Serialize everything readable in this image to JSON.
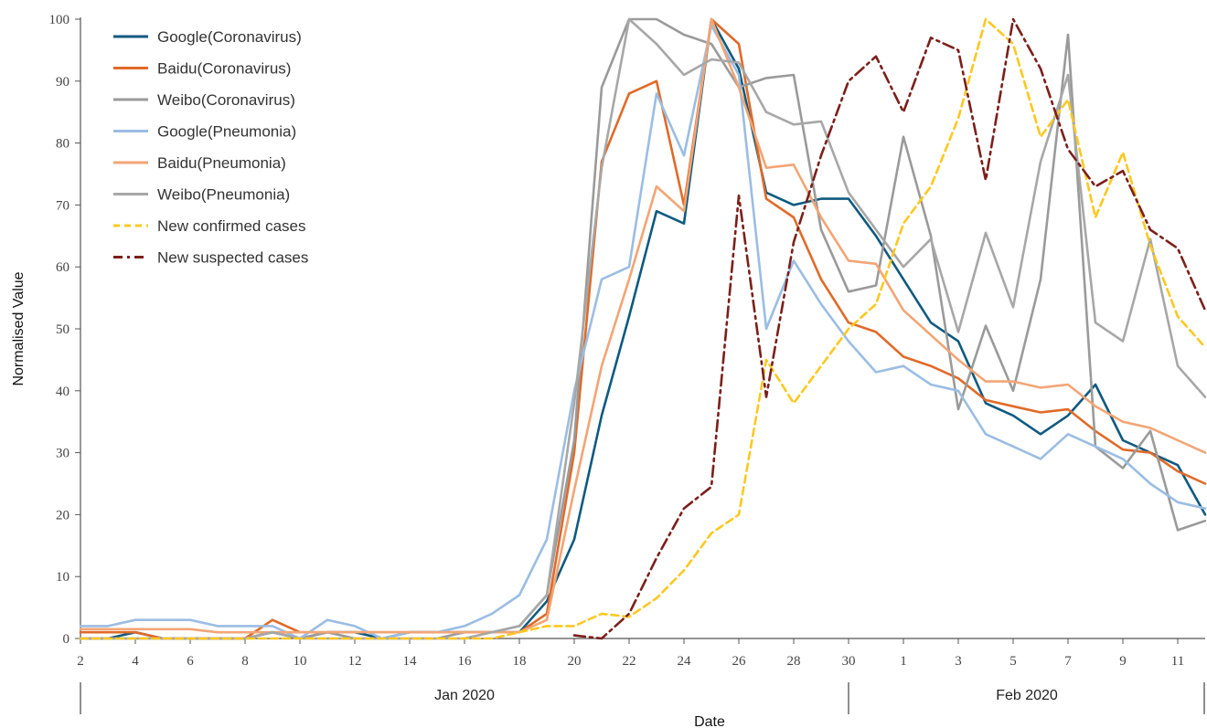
{
  "chart_data": {
    "type": "line",
    "xlabel": "Date",
    "ylabel": "Normalised Value",
    "ylim": [
      0,
      100
    ],
    "yticks": [
      0,
      10,
      20,
      30,
      40,
      50,
      60,
      70,
      80,
      90,
      100
    ],
    "xticks": [
      {
        "day": 2,
        "label": "2"
      },
      {
        "day": 4,
        "label": "4"
      },
      {
        "day": 6,
        "label": "6"
      },
      {
        "day": 8,
        "label": "8"
      },
      {
        "day": 10,
        "label": "10"
      },
      {
        "day": 12,
        "label": "12"
      },
      {
        "day": 14,
        "label": "14"
      },
      {
        "day": 16,
        "label": "16"
      },
      {
        "day": 18,
        "label": "18"
      },
      {
        "day": 20,
        "label": "20"
      },
      {
        "day": 22,
        "label": "22"
      },
      {
        "day": 24,
        "label": "24"
      },
      {
        "day": 26,
        "label": "26"
      },
      {
        "day": 28,
        "label": "28"
      },
      {
        "day": 30,
        "label": "30"
      },
      {
        "day": 32,
        "label": "1"
      },
      {
        "day": 34,
        "label": "3"
      },
      {
        "day": 36,
        "label": "5"
      },
      {
        "day": 38,
        "label": "7"
      },
      {
        "day": 40,
        "label": "9"
      },
      {
        "day": 42,
        "label": "11"
      }
    ],
    "xlim": [
      2,
      43
    ],
    "months": [
      {
        "label": "Jan 2020",
        "from": 2,
        "to": 30
      },
      {
        "label": "Feb 2020",
        "from": 30,
        "to": 43
      }
    ],
    "legend_position": "top-left",
    "grid": false,
    "series": [
      {
        "name": "Google(Coronavirus)",
        "color": "#0e5a80",
        "dash": "solid",
        "x": [
          2,
          3,
          4,
          5,
          6,
          7,
          8,
          9,
          10,
          11,
          12,
          13,
          14,
          15,
          16,
          17,
          18,
          19,
          20,
          21,
          22,
          23,
          24,
          25,
          26,
          27,
          28,
          29,
          30,
          31,
          32,
          33,
          34,
          35,
          36,
          37,
          38,
          39,
          40,
          41,
          42,
          43
        ],
        "y": [
          0,
          0,
          1,
          0,
          0,
          0,
          0,
          1,
          0,
          1,
          1,
          0,
          1,
          1,
          1,
          1,
          1,
          6,
          16,
          36,
          52,
          69,
          67,
          100,
          92,
          72,
          70,
          71,
          71,
          65,
          58,
          51,
          48,
          38,
          36,
          33,
          36,
          41,
          32,
          30,
          28,
          20
        ]
      },
      {
        "name": "Baidu(Coronavirus)",
        "color": "#e06a28",
        "dash": "solid",
        "x": [
          2,
          3,
          4,
          5,
          6,
          7,
          8,
          9,
          10,
          11,
          12,
          13,
          14,
          15,
          16,
          17,
          18,
          19,
          20,
          21,
          22,
          23,
          24,
          25,
          26,
          27,
          28,
          29,
          30,
          31,
          32,
          33,
          34,
          35,
          36,
          37,
          38,
          39,
          40,
          41,
          42,
          43
        ],
        "y": [
          1,
          1,
          1,
          0,
          0,
          0,
          0,
          3,
          1,
          1,
          1,
          1,
          1,
          1,
          1,
          1,
          1,
          4,
          30,
          77,
          88,
          90,
          70,
          100,
          96,
          71,
          68,
          58,
          51,
          49.5,
          45.5,
          44,
          42,
          38.5,
          37.5,
          36.5,
          37,
          33.5,
          30.5,
          30,
          27,
          25
        ]
      },
      {
        "name": "Weibo(Coronavirus)",
        "color": "#9a9a9a",
        "dash": "solid",
        "x": [
          2,
          3,
          4,
          5,
          6,
          7,
          8,
          9,
          10,
          11,
          12,
          13,
          14,
          15,
          16,
          17,
          18,
          19,
          20,
          21,
          22,
          23,
          24,
          25,
          26,
          27,
          28,
          29,
          30,
          31,
          32,
          33,
          34,
          35,
          36,
          37,
          38,
          39,
          40,
          41,
          42,
          43
        ],
        "y": [
          0,
          0,
          0,
          0,
          0,
          0,
          0,
          1,
          0,
          1,
          0,
          0,
          0,
          0,
          1,
          1,
          2,
          7,
          32,
          89,
          100,
          100,
          97.5,
          96,
          89,
          90.5,
          91,
          66,
          56,
          57,
          81,
          65,
          37,
          50.5,
          40,
          58,
          97.5,
          31,
          27.5,
          33.5,
          17.5,
          19
        ]
      },
      {
        "name": "Google(Pneumonia)",
        "color": "#9bbde3",
        "dash": "solid",
        "x": [
          2,
          3,
          4,
          5,
          6,
          7,
          8,
          9,
          10,
          11,
          12,
          13,
          14,
          15,
          16,
          17,
          18,
          19,
          20,
          21,
          22,
          23,
          24,
          25,
          26,
          27,
          28,
          29,
          30,
          31,
          32,
          33,
          34,
          35,
          36,
          37,
          38,
          39,
          40,
          41,
          42,
          43
        ],
        "y": [
          2,
          2,
          3,
          3,
          3,
          2,
          2,
          2,
          0,
          3,
          2,
          0,
          1,
          1,
          2,
          4,
          7,
          16,
          40,
          58,
          60,
          88,
          78,
          99,
          91,
          50,
          61,
          54,
          48,
          43,
          44,
          41,
          40,
          33,
          31,
          29,
          33,
          31,
          29,
          25,
          22,
          21
        ]
      },
      {
        "name": "Baidu(Pneumonia)",
        "color": "#f2a575",
        "dash": "solid",
        "x": [
          2,
          3,
          4,
          5,
          6,
          7,
          8,
          9,
          10,
          11,
          12,
          13,
          14,
          15,
          16,
          17,
          18,
          19,
          20,
          21,
          22,
          23,
          24,
          25,
          26,
          27,
          28,
          29,
          30,
          31,
          32,
          33,
          34,
          35,
          36,
          37,
          38,
          39,
          40,
          41,
          42,
          43
        ],
        "y": [
          1.5,
          1.5,
          1.5,
          1.5,
          1.5,
          1,
          1,
          1,
          1,
          1,
          1,
          1,
          1,
          1,
          1,
          1,
          1,
          3,
          24,
          44,
          58,
          73,
          69,
          100,
          89,
          76,
          76.5,
          68,
          61,
          60.5,
          53,
          49,
          45,
          41.5,
          41.5,
          40.5,
          41,
          37.5,
          35,
          34,
          32,
          30
        ]
      },
      {
        "name": "Weibo(Pneumonia)",
        "color": "#a7a7a7",
        "dash": "solid",
        "x": [
          2,
          3,
          4,
          5,
          6,
          7,
          8,
          9,
          10,
          11,
          12,
          13,
          14,
          15,
          16,
          17,
          18,
          19,
          20,
          21,
          22,
          23,
          24,
          25,
          26,
          27,
          28,
          29,
          30,
          31,
          32,
          33,
          34,
          35,
          36,
          37,
          38,
          39,
          40,
          41,
          42,
          43
        ],
        "y": [
          0,
          0,
          0,
          0,
          0,
          0,
          0,
          1,
          0,
          0,
          0,
          0,
          0,
          0,
          0,
          1,
          2,
          7,
          38,
          76,
          100,
          96,
          91,
          93.5,
          93,
          85,
          83,
          83.5,
          72,
          66,
          60,
          64.5,
          49.5,
          65.5,
          53.5,
          77,
          91,
          51,
          48,
          64.5,
          44,
          39
        ]
      },
      {
        "name": "New confirmed cases",
        "color": "#fcc820",
        "dash": "dashed",
        "x": [
          2,
          3,
          4,
          5,
          6,
          7,
          8,
          9,
          10,
          11,
          12,
          13,
          14,
          15,
          16,
          17,
          18,
          19,
          20,
          21,
          22,
          23,
          24,
          25,
          26,
          27,
          28,
          29,
          30,
          31,
          32,
          33,
          34,
          35,
          36,
          37,
          38,
          39,
          40,
          41,
          42,
          43
        ],
        "y": [
          0,
          0,
          0,
          0,
          0,
          0,
          0,
          0,
          0,
          0,
          0,
          0,
          0,
          0,
          0,
          0,
          1,
          2,
          2,
          4,
          3.5,
          6.5,
          11,
          17,
          20,
          45,
          38,
          44,
          50,
          54,
          67,
          73,
          84,
          100,
          96,
          81,
          87,
          68,
          78.5,
          63.5,
          52,
          47
        ]
      },
      {
        "name": "New suspected cases",
        "color": "#7b1f1a",
        "dash": "dashdot",
        "x": [
          20,
          21,
          22,
          23,
          24,
          25,
          26,
          27,
          28,
          29,
          30,
          31,
          32,
          33,
          34,
          35,
          36,
          37,
          38,
          39,
          40,
          41,
          42,
          43
        ],
        "y": [
          0.5,
          0,
          4,
          13,
          21,
          24.5,
          71.5,
          39,
          64,
          78,
          90,
          94,
          85,
          97,
          95,
          74,
          100,
          92,
          79,
          73,
          75.5,
          66,
          63,
          53
        ]
      }
    ]
  }
}
